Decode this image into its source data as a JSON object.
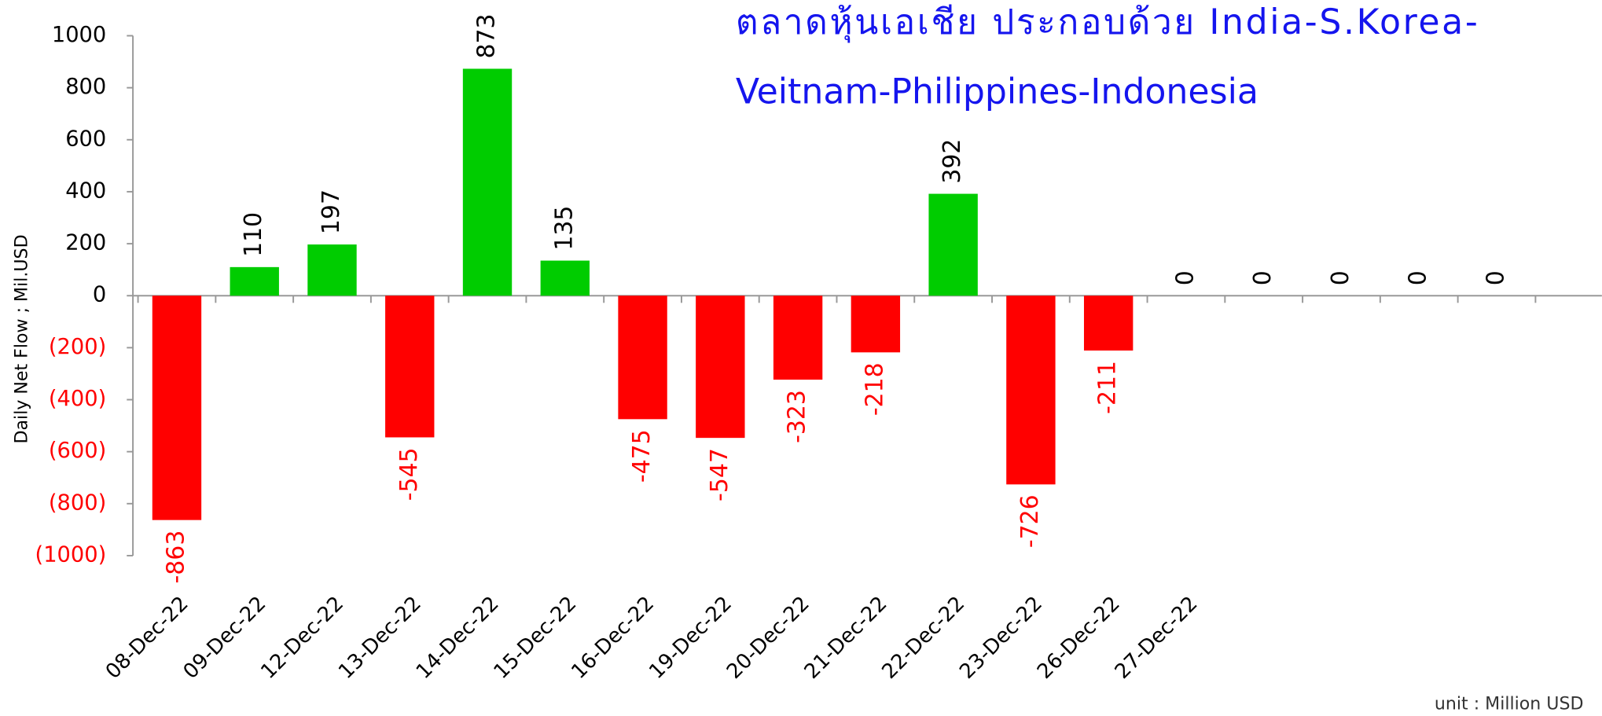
{
  "chart_data": {
    "type": "bar",
    "title": [
      "ตลาดหุ้นเอเชีย ประกอบด้วย India-S.Korea-",
      "Veitnam-Philippines-Indonesia"
    ],
    "y_label": "Daily Net Flow ; Mil.USD",
    "note": "unit : Million USD",
    "categories": [
      "08-Dec-22",
      "09-Dec-22",
      "12-Dec-22",
      "13-Dec-22",
      "14-Dec-22",
      "15-Dec-22",
      "16-Dec-22",
      "19-Dec-22",
      "20-Dec-22",
      "21-Dec-22",
      "22-Dec-22",
      "23-Dec-22",
      "26-Dec-22",
      "27-Dec-22",
      null,
      null,
      null,
      null
    ],
    "values": [
      -863,
      110,
      197,
      -545,
      873,
      135,
      -475,
      -547,
      -323,
      -218,
      392,
      -726,
      -211,
      0,
      0,
      0,
      0,
      0
    ],
    "positive_color": "#00cc00",
    "negative_color": "#ff0000",
    "ylim": [
      -1000,
      1000
    ],
    "yticks": [
      {
        "value": -1000,
        "label": "(1000)"
      },
      {
        "value": -800,
        "label": "(800)"
      },
      {
        "value": -600,
        "label": "(600)"
      },
      {
        "value": -400,
        "label": "(400)"
      },
      {
        "value": -200,
        "label": "(200)"
      },
      0,
      200,
      400,
      600,
      800,
      1000
    ]
  }
}
